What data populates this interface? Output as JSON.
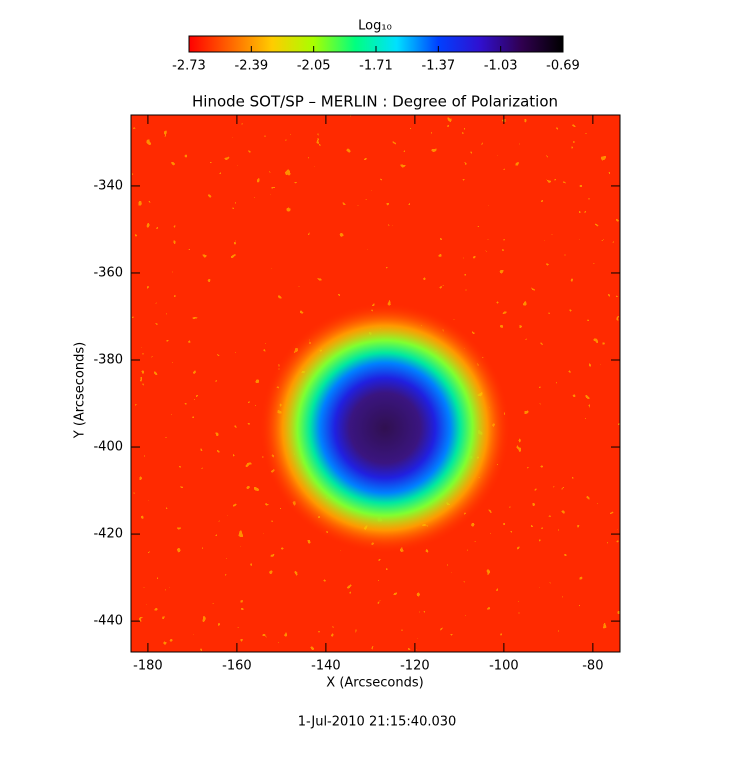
{
  "chart_data": {
    "type": "heatmap",
    "title": "Hinode SOT/SP – MERLIN : Degree of Polarization",
    "x_label": "X (Arcseconds)",
    "y_label": "Y (Arcseconds)",
    "date": "1-Jul-2010 21:15:40.030",
    "colorbar_label": "Log₁₀",
    "colormap": [
      "#ff0000",
      "#ff6600",
      "#ffcc00",
      "#a8ff00",
      "#00ff80",
      "#00e0ff",
      "#0040ff",
      "#3010d0",
      "#300050",
      "#000000"
    ],
    "clim": [
      -2.73,
      -0.69
    ],
    "cticks": [
      -2.73,
      -2.39,
      -2.05,
      -1.71,
      -1.37,
      -1.03,
      -0.69
    ],
    "xlim": [
      -183.8,
      -73.9
    ],
    "xticks": [
      -180,
      -160,
      -140,
      -120,
      -100,
      -80
    ],
    "ylim": [
      -447.1,
      -323.7
    ],
    "yticks": [
      -440,
      -420,
      -400,
      -380,
      -360,
      -340
    ]
  }
}
